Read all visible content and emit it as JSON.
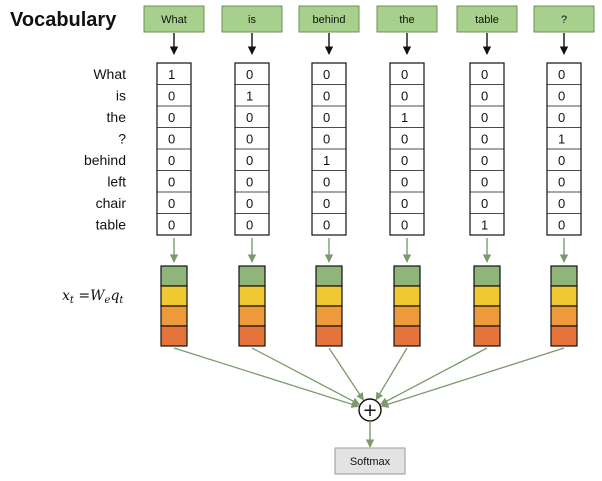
{
  "title": "Vocabulary",
  "words": [
    "What",
    "is",
    "behind",
    "the",
    "table",
    "?"
  ],
  "vocabulary": [
    "What",
    "is",
    "the",
    "?",
    "behind",
    "left",
    "chair",
    "table"
  ],
  "one_hot": [
    [
      1,
      0,
      0,
      0,
      0,
      0,
      0,
      0
    ],
    [
      0,
      1,
      0,
      0,
      0,
      0,
      0,
      0
    ],
    [
      0,
      0,
      0,
      0,
      1,
      0,
      0,
      0
    ],
    [
      0,
      0,
      1,
      0,
      0,
      0,
      0,
      0
    ],
    [
      0,
      0,
      0,
      0,
      0,
      0,
      0,
      1
    ],
    [
      0,
      0,
      0,
      1,
      0,
      0,
      0,
      0
    ]
  ],
  "formula": {
    "lhs": "x",
    "lhs_sub": "t",
    "eq": " =",
    "w": "W",
    "w_sub": "e",
    "q": "q",
    "q_sub": "t"
  },
  "sum_symbol": "+",
  "output_label": "Softmax",
  "colors": {
    "word_box_fill": "#a8d08d",
    "word_box_stroke": "#6e8f5c",
    "connector": "#7a9a6c",
    "embed": [
      "#8fb57a",
      "#f0c832",
      "#ec9a3a",
      "#e4743a"
    ],
    "softmax_fill": "#e3e3e3"
  }
}
